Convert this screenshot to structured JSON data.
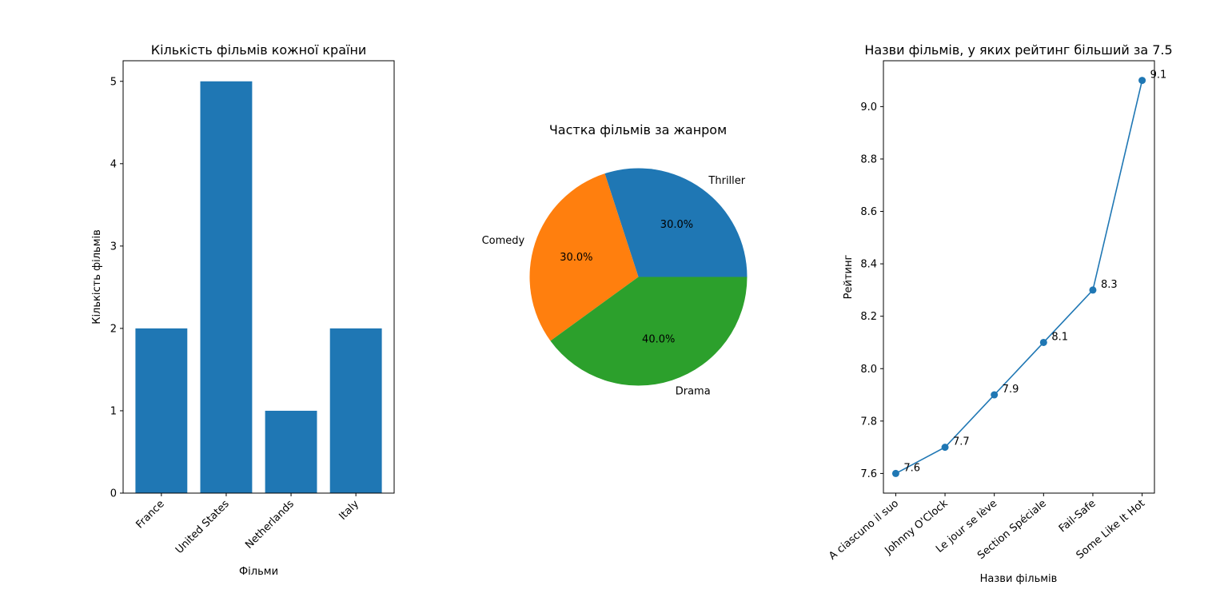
{
  "figure": {
    "background": "#ffffff",
    "text_color": "#000000",
    "axis_color": "#000000"
  },
  "chart_data": [
    {
      "type": "bar",
      "title": "Кількість фільмів кожної країни",
      "xlabel": "Фільми",
      "ylabel": "Кількість фільмів",
      "categories": [
        "France",
        "United States",
        "Netherlands",
        "Italy"
      ],
      "values": [
        2,
        5,
        1,
        2
      ],
      "ylim": [
        0,
        5.25
      ],
      "yticks": [
        0,
        1,
        2,
        3,
        4,
        5
      ],
      "ytick_labels": [
        "0",
        "1",
        "2",
        "3",
        "4",
        "5"
      ],
      "xtick_rotation": 45,
      "color": "#1f77b4",
      "grid": false,
      "legend": "none"
    },
    {
      "type": "pie",
      "title": "Частка фільмів за жанром",
      "labels": [
        "Thriller",
        "Comedy",
        "Drama"
      ],
      "values": [
        30,
        30,
        40
      ],
      "percent_labels": [
        "30.0%",
        "30.0%",
        "40.0%"
      ],
      "colors": [
        "#1f77b4",
        "#ff7f0e",
        "#2ca02c"
      ],
      "start_angle": 0,
      "direction": "counterclockwise",
      "legend": "none"
    },
    {
      "type": "line",
      "title": "Назви фільмів, у яких рейтинг більший за 7.5",
      "xlabel": "Назви фільмів",
      "ylabel": "Рейтинг",
      "categories": [
        "A ciascuno il suo",
        "Johnny O'Clock",
        "Le jour se lève",
        "Section Spéciale",
        "Fail-Safe",
        "Some Like It Hot"
      ],
      "values": [
        7.6,
        7.7,
        7.9,
        8.1,
        8.3,
        9.1
      ],
      "value_labels": [
        "7.6",
        "7.7",
        "7.9",
        "8.1",
        "8.3",
        "9.1"
      ],
      "ylim": [
        7.525,
        9.175
      ],
      "yticks": [
        7.6,
        7.8,
        8.0,
        8.2,
        8.4,
        8.6,
        8.8,
        9.0
      ],
      "ytick_labels": [
        "7.6",
        "7.8",
        "8.0",
        "8.2",
        "8.4",
        "8.6",
        "8.8",
        "9.0"
      ],
      "xtick_rotation": 40,
      "marker": "circle",
      "color": "#1f77b4",
      "grid": false,
      "legend": "none"
    }
  ]
}
